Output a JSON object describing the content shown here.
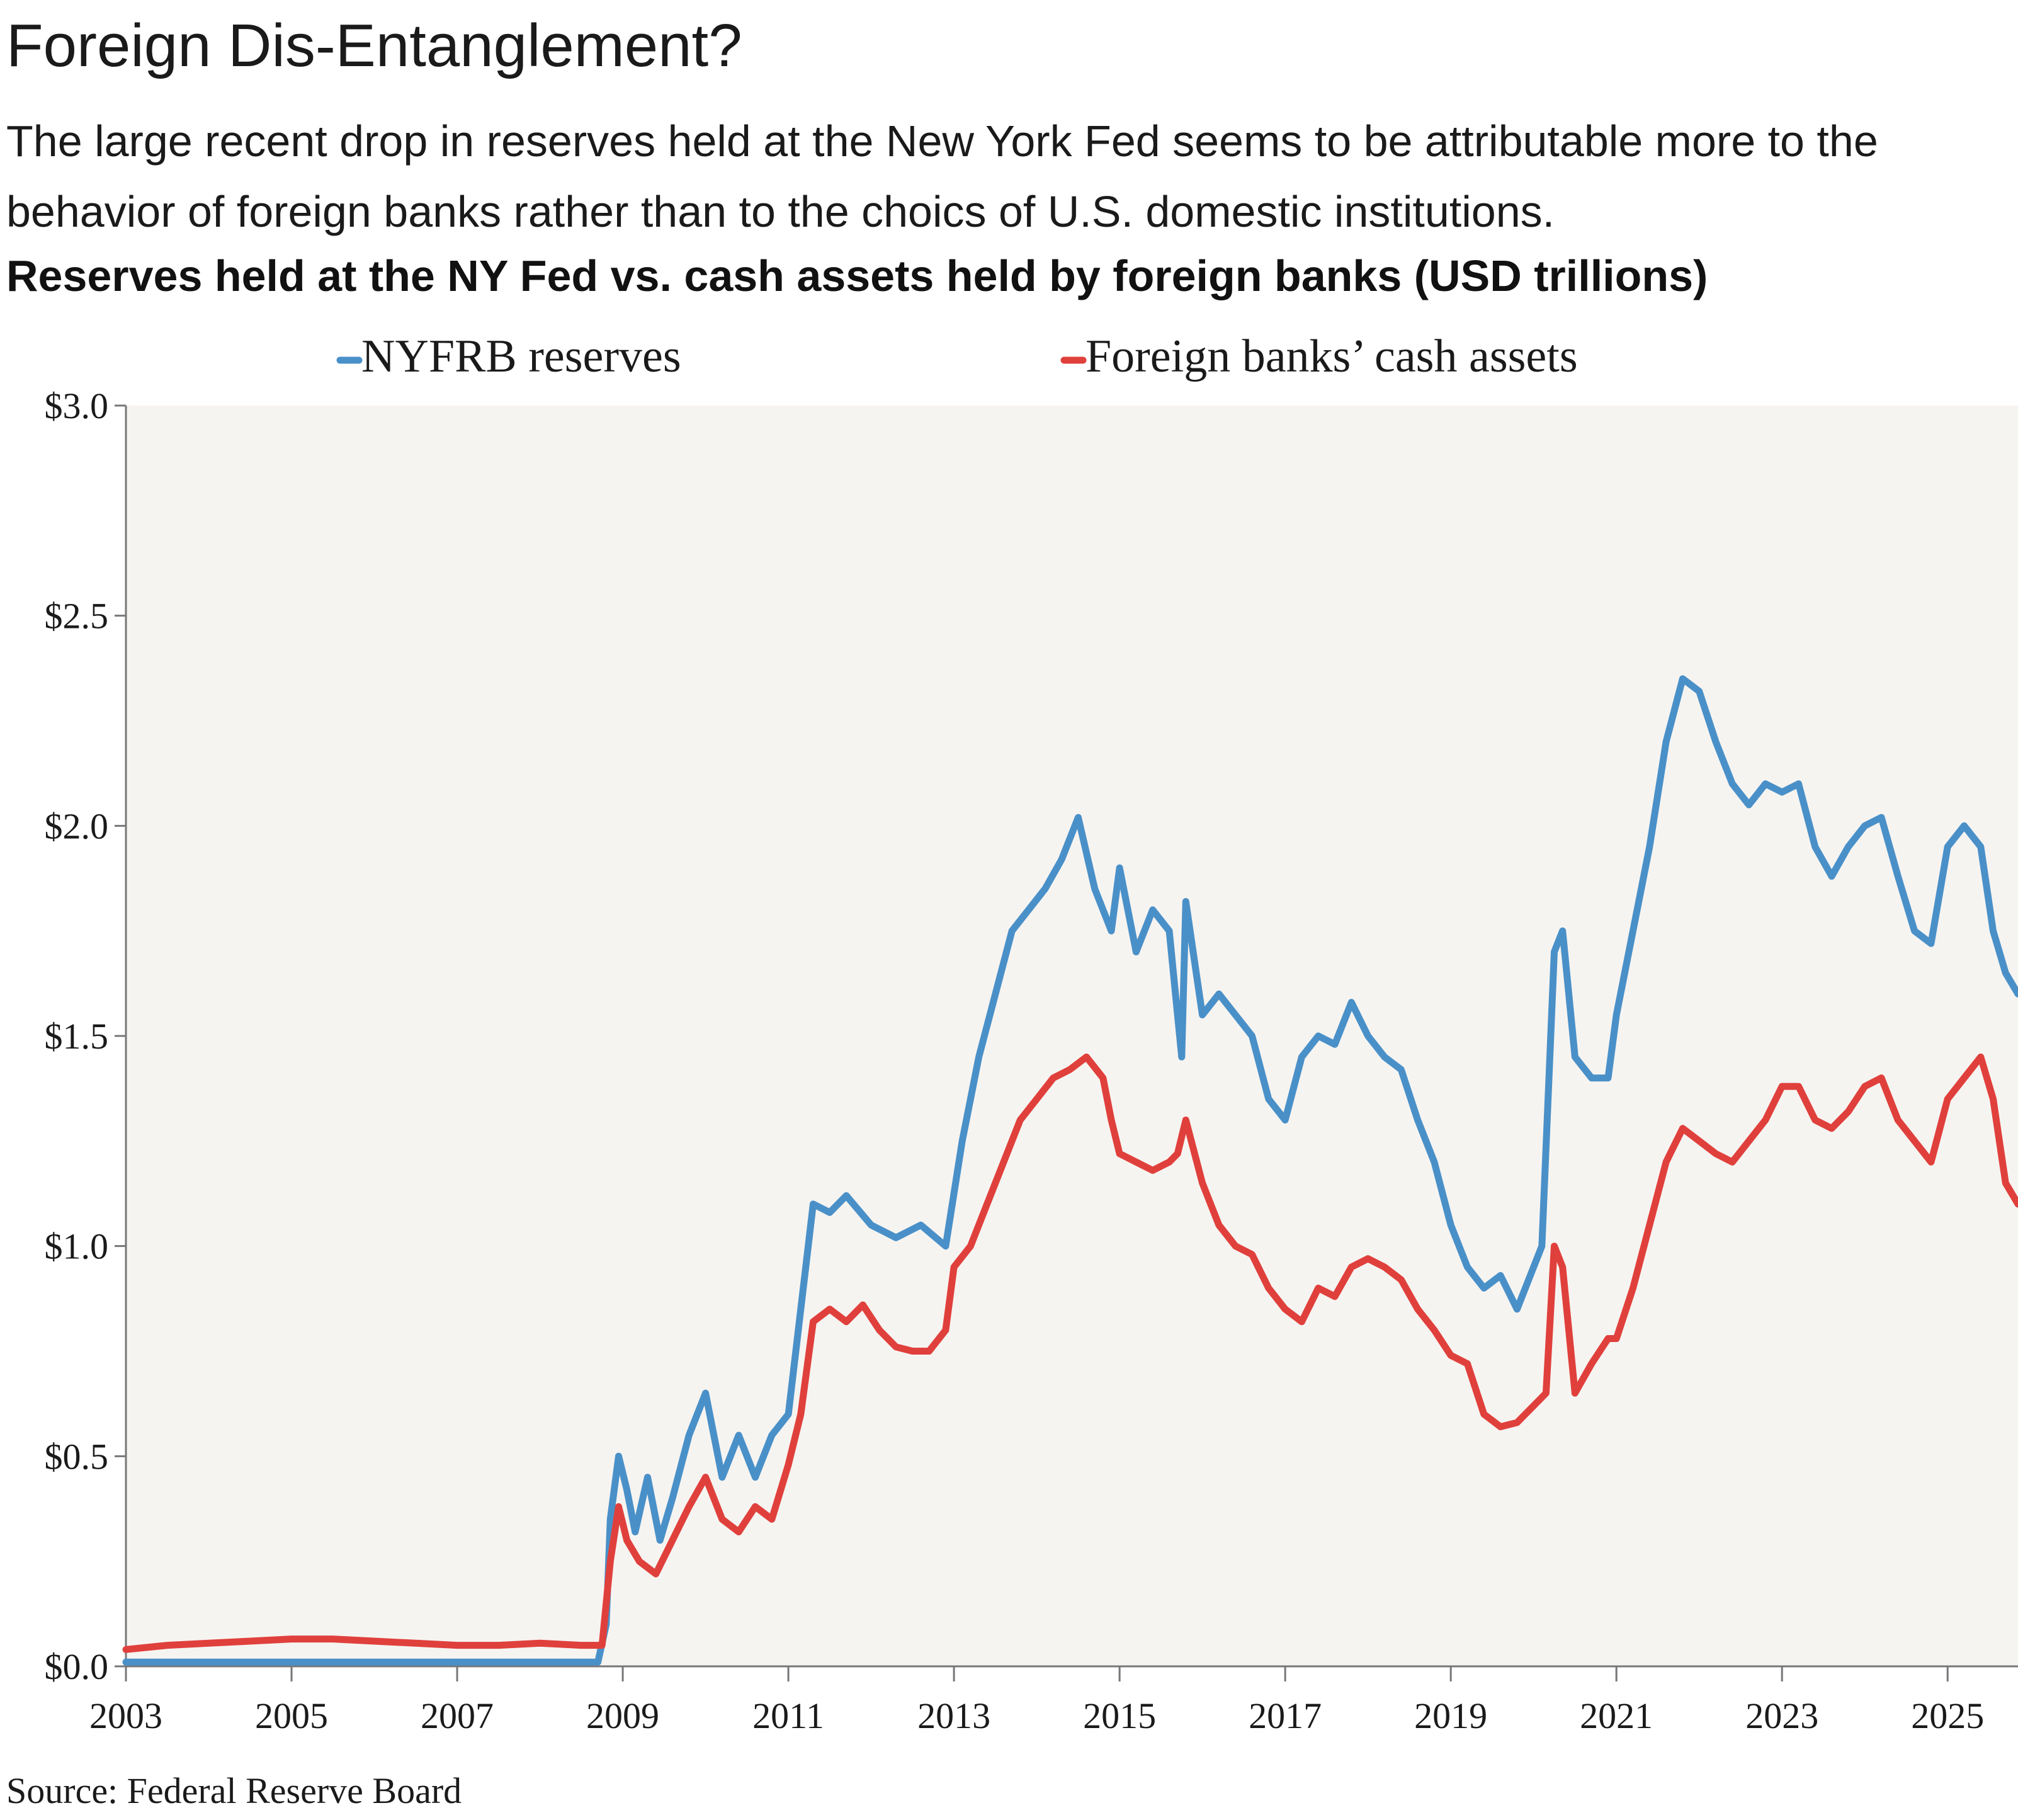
{
  "title": "Foreign Dis-Entanglement?",
  "subtitle": "The large recent drop in reserves held at the New York Fed seems to be attributable more to the behavior of foreign banks rather than to the choics of U.S. domestic institutions.",
  "source": "Source: Federal Reserve Board",
  "colors": {
    "blue": "#4A90C8",
    "red": "#E0403C",
    "plot_bg": "#F6F4F1",
    "axis": "#777777"
  },
  "chart_data": {
    "type": "line",
    "title": "Reserves held at the NY Fed vs. cash assets held by foreign banks (USD trillions)",
    "xlabel": "",
    "ylabel": "",
    "xlim": [
      2003,
      2025.85
    ],
    "ylim": [
      0,
      3.0
    ],
    "legend_position": "top",
    "x_ticks": [
      "2003",
      "2005",
      "2007",
      "2009",
      "2011",
      "2013",
      "2015",
      "2017",
      "2019",
      "2021",
      "2023",
      "2025"
    ],
    "y_ticks": [
      "$0.0",
      "$0.5",
      "$1.0",
      "$1.5",
      "$2.0",
      "$2.5",
      "$3.0"
    ],
    "series": [
      {
        "name": "NYFRB reserves",
        "color": "#4A90C8",
        "points": [
          [
            2003.0,
            0.01
          ],
          [
            2004.0,
            0.01
          ],
          [
            2005.0,
            0.01
          ],
          [
            2006.0,
            0.01
          ],
          [
            2007.0,
            0.01
          ],
          [
            2008.0,
            0.01
          ],
          [
            2008.7,
            0.01
          ],
          [
            2008.8,
            0.1
          ],
          [
            2008.85,
            0.35
          ],
          [
            2008.95,
            0.5
          ],
          [
            2009.05,
            0.42
          ],
          [
            2009.15,
            0.32
          ],
          [
            2009.3,
            0.45
          ],
          [
            2009.45,
            0.3
          ],
          [
            2009.6,
            0.4
          ],
          [
            2009.8,
            0.55
          ],
          [
            2010.0,
            0.65
          ],
          [
            2010.2,
            0.45
          ],
          [
            2010.4,
            0.55
          ],
          [
            2010.6,
            0.45
          ],
          [
            2010.8,
            0.55
          ],
          [
            2011.0,
            0.6
          ],
          [
            2011.15,
            0.85
          ],
          [
            2011.3,
            1.1
          ],
          [
            2011.5,
            1.08
          ],
          [
            2011.7,
            1.12
          ],
          [
            2012.0,
            1.05
          ],
          [
            2012.3,
            1.02
          ],
          [
            2012.6,
            1.05
          ],
          [
            2012.9,
            1.0
          ],
          [
            2013.1,
            1.25
          ],
          [
            2013.3,
            1.45
          ],
          [
            2013.5,
            1.6
          ],
          [
            2013.7,
            1.75
          ],
          [
            2013.9,
            1.8
          ],
          [
            2014.1,
            1.85
          ],
          [
            2014.3,
            1.92
          ],
          [
            2014.5,
            2.02
          ],
          [
            2014.7,
            1.85
          ],
          [
            2014.9,
            1.75
          ],
          [
            2015.0,
            1.9
          ],
          [
            2015.2,
            1.7
          ],
          [
            2015.4,
            1.8
          ],
          [
            2015.6,
            1.75
          ],
          [
            2015.75,
            1.45
          ],
          [
            2015.8,
            1.82
          ],
          [
            2016.0,
            1.55
          ],
          [
            2016.2,
            1.6
          ],
          [
            2016.4,
            1.55
          ],
          [
            2016.6,
            1.5
          ],
          [
            2016.8,
            1.35
          ],
          [
            2017.0,
            1.3
          ],
          [
            2017.2,
            1.45
          ],
          [
            2017.4,
            1.5
          ],
          [
            2017.6,
            1.48
          ],
          [
            2017.8,
            1.58
          ],
          [
            2018.0,
            1.5
          ],
          [
            2018.2,
            1.45
          ],
          [
            2018.4,
            1.42
          ],
          [
            2018.6,
            1.3
          ],
          [
            2018.8,
            1.2
          ],
          [
            2019.0,
            1.05
          ],
          [
            2019.2,
            0.95
          ],
          [
            2019.4,
            0.9
          ],
          [
            2019.6,
            0.93
          ],
          [
            2019.8,
            0.85
          ],
          [
            2020.0,
            0.95
          ],
          [
            2020.1,
            1.0
          ],
          [
            2020.25,
            1.7
          ],
          [
            2020.35,
            1.75
          ],
          [
            2020.5,
            1.45
          ],
          [
            2020.7,
            1.4
          ],
          [
            2020.9,
            1.4
          ],
          [
            2021.0,
            1.55
          ],
          [
            2021.2,
            1.75
          ],
          [
            2021.4,
            1.95
          ],
          [
            2021.6,
            2.2
          ],
          [
            2021.8,
            2.35
          ],
          [
            2022.0,
            2.32
          ],
          [
            2022.2,
            2.2
          ],
          [
            2022.4,
            2.1
          ],
          [
            2022.6,
            2.05
          ],
          [
            2022.8,
            2.1
          ],
          [
            2023.0,
            2.08
          ],
          [
            2023.2,
            2.1
          ],
          [
            2023.4,
            1.95
          ],
          [
            2023.6,
            1.88
          ],
          [
            2023.8,
            1.95
          ],
          [
            2024.0,
            2.0
          ],
          [
            2024.2,
            2.02
          ],
          [
            2024.4,
            1.88
          ],
          [
            2024.6,
            1.75
          ],
          [
            2024.8,
            1.72
          ],
          [
            2025.0,
            1.95
          ],
          [
            2025.2,
            2.0
          ],
          [
            2025.4,
            1.95
          ],
          [
            2025.55,
            1.75
          ],
          [
            2025.7,
            1.65
          ],
          [
            2025.85,
            1.6
          ]
        ]
      },
      {
        "name": "Foreign banks’ cash assets",
        "color": "#E0403C",
        "points": [
          [
            2003.0,
            0.04
          ],
          [
            2003.5,
            0.05
          ],
          [
            2004.0,
            0.055
          ],
          [
            2004.5,
            0.06
          ],
          [
            2005.0,
            0.065
          ],
          [
            2005.5,
            0.065
          ],
          [
            2006.0,
            0.06
          ],
          [
            2006.5,
            0.055
          ],
          [
            2007.0,
            0.05
          ],
          [
            2007.5,
            0.05
          ],
          [
            2008.0,
            0.055
          ],
          [
            2008.5,
            0.05
          ],
          [
            2008.75,
            0.05
          ],
          [
            2008.85,
            0.25
          ],
          [
            2008.95,
            0.38
          ],
          [
            2009.05,
            0.3
          ],
          [
            2009.2,
            0.25
          ],
          [
            2009.4,
            0.22
          ],
          [
            2009.6,
            0.3
          ],
          [
            2009.8,
            0.38
          ],
          [
            2010.0,
            0.45
          ],
          [
            2010.2,
            0.35
          ],
          [
            2010.4,
            0.32
          ],
          [
            2010.6,
            0.38
          ],
          [
            2010.8,
            0.35
          ],
          [
            2011.0,
            0.48
          ],
          [
            2011.15,
            0.6
          ],
          [
            2011.3,
            0.82
          ],
          [
            2011.5,
            0.85
          ],
          [
            2011.7,
            0.82
          ],
          [
            2011.9,
            0.86
          ],
          [
            2012.1,
            0.8
          ],
          [
            2012.3,
            0.76
          ],
          [
            2012.5,
            0.75
          ],
          [
            2012.7,
            0.75
          ],
          [
            2012.9,
            0.8
          ],
          [
            2013.0,
            0.95
          ],
          [
            2013.2,
            1.0
          ],
          [
            2013.4,
            1.1
          ],
          [
            2013.6,
            1.2
          ],
          [
            2013.8,
            1.3
          ],
          [
            2014.0,
            1.35
          ],
          [
            2014.2,
            1.4
          ],
          [
            2014.4,
            1.42
          ],
          [
            2014.6,
            1.45
          ],
          [
            2014.8,
            1.4
          ],
          [
            2014.9,
            1.3
          ],
          [
            2015.0,
            1.22
          ],
          [
            2015.2,
            1.2
          ],
          [
            2015.4,
            1.18
          ],
          [
            2015.6,
            1.2
          ],
          [
            2015.7,
            1.22
          ],
          [
            2015.8,
            1.3
          ],
          [
            2016.0,
            1.15
          ],
          [
            2016.2,
            1.05
          ],
          [
            2016.4,
            1.0
          ],
          [
            2016.6,
            0.98
          ],
          [
            2016.8,
            0.9
          ],
          [
            2017.0,
            0.85
          ],
          [
            2017.2,
            0.82
          ],
          [
            2017.4,
            0.9
          ],
          [
            2017.6,
            0.88
          ],
          [
            2017.8,
            0.95
          ],
          [
            2018.0,
            0.97
          ],
          [
            2018.2,
            0.95
          ],
          [
            2018.4,
            0.92
          ],
          [
            2018.6,
            0.85
          ],
          [
            2018.8,
            0.8
          ],
          [
            2019.0,
            0.74
          ],
          [
            2019.2,
            0.72
          ],
          [
            2019.4,
            0.6
          ],
          [
            2019.6,
            0.57
          ],
          [
            2019.8,
            0.58
          ],
          [
            2020.0,
            0.62
          ],
          [
            2020.15,
            0.65
          ],
          [
            2020.25,
            1.0
          ],
          [
            2020.35,
            0.95
          ],
          [
            2020.5,
            0.65
          ],
          [
            2020.7,
            0.72
          ],
          [
            2020.9,
            0.78
          ],
          [
            2021.0,
            0.78
          ],
          [
            2021.2,
            0.9
          ],
          [
            2021.4,
            1.05
          ],
          [
            2021.6,
            1.2
          ],
          [
            2021.8,
            1.28
          ],
          [
            2022.0,
            1.25
          ],
          [
            2022.2,
            1.22
          ],
          [
            2022.4,
            1.2
          ],
          [
            2022.6,
            1.25
          ],
          [
            2022.8,
            1.3
          ],
          [
            2023.0,
            1.38
          ],
          [
            2023.2,
            1.38
          ],
          [
            2023.4,
            1.3
          ],
          [
            2023.6,
            1.28
          ],
          [
            2023.8,
            1.32
          ],
          [
            2024.0,
            1.38
          ],
          [
            2024.2,
            1.4
          ],
          [
            2024.4,
            1.3
          ],
          [
            2024.6,
            1.25
          ],
          [
            2024.8,
            1.2
          ],
          [
            2025.0,
            1.35
          ],
          [
            2025.2,
            1.4
          ],
          [
            2025.4,
            1.45
          ],
          [
            2025.55,
            1.35
          ],
          [
            2025.7,
            1.15
          ],
          [
            2025.85,
            1.1
          ]
        ]
      }
    ]
  }
}
